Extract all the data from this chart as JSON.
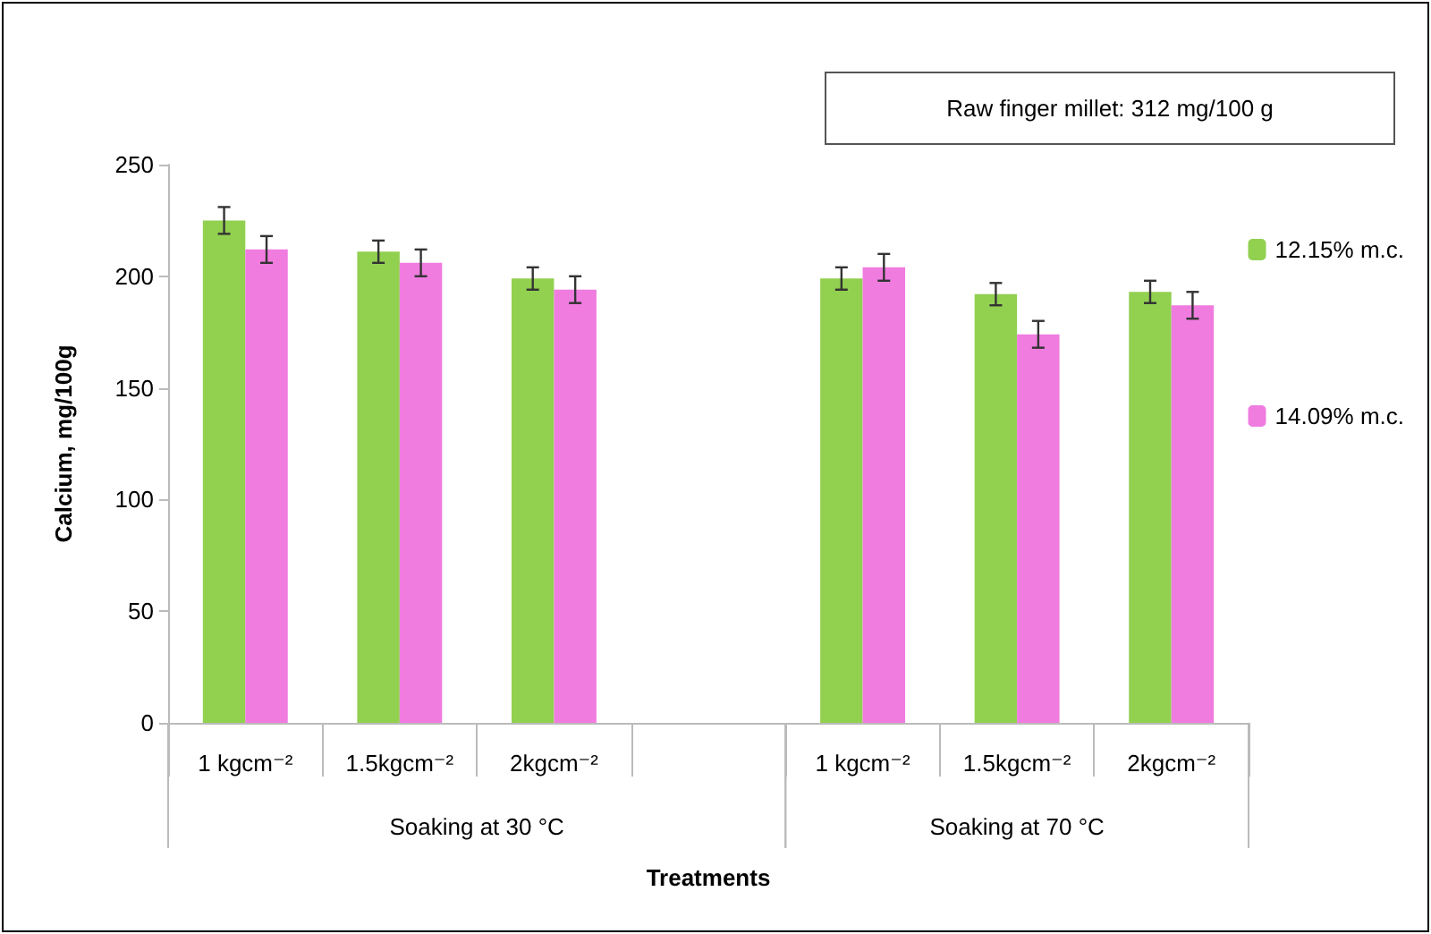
{
  "chart_data": {
    "type": "bar",
    "xlabel": "Treatments",
    "ylabel": "Calcium, mg/100g",
    "categories": [
      "1 kgcm⁻²",
      "1.5kgcm⁻²",
      "2kgcm⁻²",
      null,
      "1 kgcm⁻²",
      "1.5kgcm⁻²",
      "2kgcm⁻²"
    ],
    "series": [
      {
        "name": "12.15% m.c.",
        "color": "#92d050",
        "values": [
          225,
          211,
          199,
          null,
          199,
          192,
          193
        ],
        "errors": [
          6,
          5,
          5,
          null,
          5,
          5,
          5
        ]
      },
      {
        "name": "14.09% m.c.",
        "color": "#f07ce0",
        "values": [
          212,
          206,
          194,
          null,
          204,
          174,
          187
        ],
        "errors": [
          6,
          6,
          6,
          null,
          6,
          6,
          6
        ]
      }
    ],
    "annotations": [
      "Raw finger millet: 312 mg/100 g",
      "Soaking at 30 °C",
      "Soaking at 70 °C"
    ],
    "ylim": [
      0,
      250
    ],
    "yticks": [
      0,
      50,
      100,
      150,
      200,
      250
    ],
    "grid": false,
    "legend": "right"
  }
}
